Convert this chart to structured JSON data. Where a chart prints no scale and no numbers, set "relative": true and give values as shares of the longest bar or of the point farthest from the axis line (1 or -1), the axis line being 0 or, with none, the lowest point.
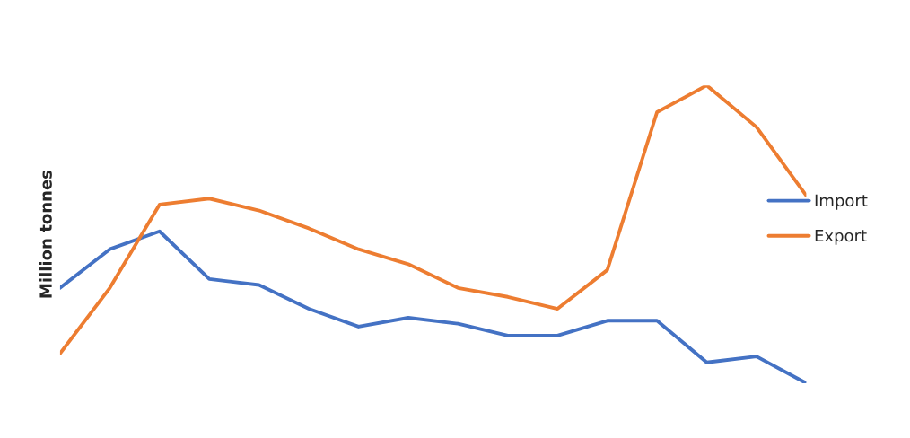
{
  "chart_data": {
    "type": "line",
    "relative": true,
    "ylabel": "Million tonnes",
    "legend": "right",
    "grid": false,
    "marker": "none",
    "line_style": "solid",
    "categories": [
      null,
      null,
      null,
      null,
      null,
      null,
      null,
      null,
      null,
      null,
      null,
      null,
      null,
      null,
      null,
      null
    ],
    "series": [
      {
        "name": "Import",
        "color": "#4472c4",
        "values": [
          0.32,
          0.45,
          0.51,
          0.35,
          0.33,
          0.25,
          0.19,
          0.22,
          0.2,
          0.16,
          0.16,
          0.21,
          0.21,
          0.07,
          0.09,
          0.0
        ]
      },
      {
        "name": "Export",
        "color": "#ed7d31",
        "values": [
          0.1,
          0.32,
          0.6,
          0.62,
          0.58,
          0.52,
          0.45,
          0.4,
          0.32,
          0.29,
          0.25,
          0.38,
          0.91,
          1.0,
          0.86,
          0.63
        ]
      }
    ]
  }
}
